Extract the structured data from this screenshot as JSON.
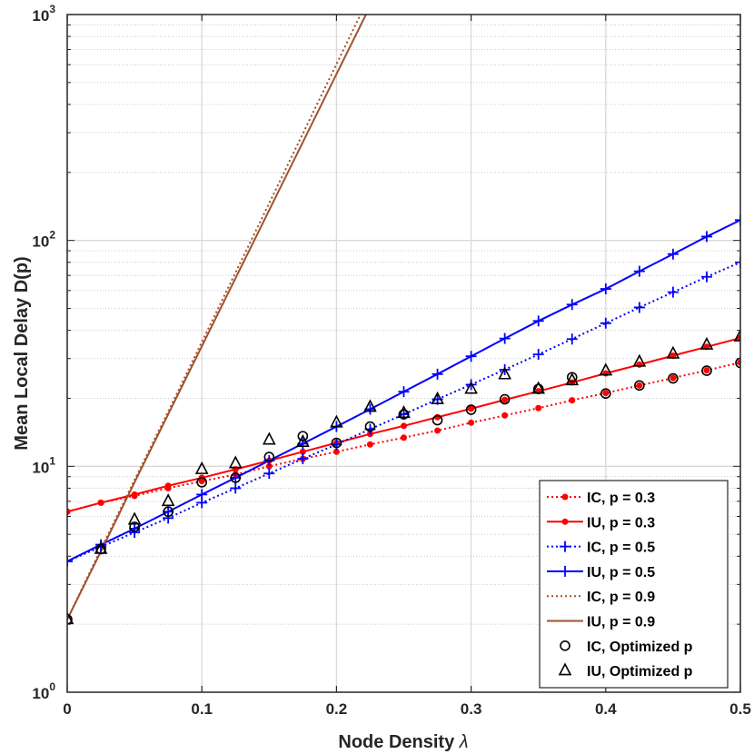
{
  "chart_data": {
    "type": "line",
    "yscale": "log",
    "xlabel": "Node Density",
    "xlabel_symbol": "λ",
    "ylabel": "Mean Local Delay D(p)",
    "xlim": [
      0,
      0.5
    ],
    "ylim": [
      1,
      1000
    ],
    "grid": true,
    "legend_position": "bottom-right",
    "x_ticks": [
      "0",
      "0.1",
      "0.2",
      "0.3",
      "0.4",
      "0.5"
    ],
    "x_tick_values": [
      0,
      0.1,
      0.2,
      0.3,
      0.4,
      0.5
    ],
    "y_ticks": [
      {
        "base": "10",
        "exp": "0",
        "value": 1
      },
      {
        "base": "10",
        "exp": "1",
        "value": 10
      },
      {
        "base": "10",
        "exp": "2",
        "value": 100
      },
      {
        "base": "10",
        "exp": "3",
        "value": 1000
      }
    ],
    "series": [
      {
        "name": "IC, p = 0.3",
        "color": "#ff0000",
        "dash": "dotted",
        "marker": "dot",
        "x": [
          0,
          0.025,
          0.05,
          0.075,
          0.1,
          0.125,
          0.15,
          0.175,
          0.2,
          0.225,
          0.25,
          0.275,
          0.3,
          0.325,
          0.35,
          0.375,
          0.4,
          0.425,
          0.45,
          0.475,
          0.5
        ],
        "y": [
          6.3,
          6.9,
          7.4,
          8.0,
          8.6,
          9.2,
          10.0,
          10.8,
          11.6,
          12.5,
          13.4,
          14.4,
          15.6,
          16.8,
          18.1,
          19.6,
          21.1,
          22.8,
          24.6,
          26.6,
          28.8
        ]
      },
      {
        "name": "IU, p = 0.3",
        "color": "#ff0000",
        "dash": "solid",
        "marker": "dot",
        "x": [
          0,
          0.025,
          0.05,
          0.075,
          0.1,
          0.125,
          0.15,
          0.175,
          0.2,
          0.225,
          0.25,
          0.275,
          0.3,
          0.325,
          0.35,
          0.375,
          0.4,
          0.425,
          0.45,
          0.475,
          0.5
        ],
        "y": [
          6.3,
          6.9,
          7.5,
          8.2,
          8.9,
          9.7,
          10.6,
          11.6,
          12.7,
          13.9,
          15.1,
          16.5,
          18.0,
          19.7,
          21.5,
          23.5,
          25.8,
          28.2,
          30.9,
          33.8,
          37.0
        ]
      },
      {
        "name": "IC, p = 0.5",
        "color": "#0000ff",
        "dash": "dotted",
        "marker": "plus",
        "x": [
          0,
          0.025,
          0.05,
          0.075,
          0.1,
          0.125,
          0.15,
          0.175,
          0.2,
          0.225,
          0.25,
          0.275,
          0.3,
          0.325,
          0.35,
          0.375,
          0.4,
          0.425,
          0.45,
          0.475,
          0.5
        ],
        "y": [
          3.8,
          4.4,
          5.1,
          5.9,
          6.9,
          8.0,
          9.3,
          10.8,
          12.5,
          14.6,
          17.0,
          19.8,
          23.0,
          26.8,
          31.3,
          36.6,
          43.0,
          50.5,
          59.0,
          69.0,
          80.0
        ]
      },
      {
        "name": "IU, p = 0.5",
        "color": "#0000ff",
        "dash": "solid",
        "marker": "plus",
        "x": [
          0,
          0.025,
          0.05,
          0.075,
          0.1,
          0.125,
          0.15,
          0.175,
          0.2,
          0.225,
          0.25,
          0.275,
          0.3,
          0.325,
          0.35,
          0.375,
          0.4,
          0.425,
          0.45,
          0.475,
          0.5
        ],
        "y": [
          3.8,
          4.5,
          5.3,
          6.3,
          7.5,
          8.9,
          10.6,
          12.6,
          15.0,
          17.9,
          21.4,
          25.6,
          30.7,
          36.8,
          44.0,
          52.0,
          61.0,
          73.0,
          87.0,
          104.0,
          123.0
        ]
      },
      {
        "name": "IC, p = 0.9",
        "color": "#a0522d",
        "dash": "dotted",
        "marker": "none",
        "x": [
          0,
          0.025,
          0.05,
          0.075,
          0.1,
          0.125,
          0.15,
          0.175,
          0.2,
          0.225
        ],
        "y": [
          2.1,
          4.3,
          8.7,
          17.5,
          35.5,
          72.0,
          146.0,
          297.0,
          603.0,
          1225.0
        ]
      },
      {
        "name": "IU, p = 0.9",
        "color": "#a0522d",
        "dash": "solid",
        "marker": "none",
        "x": [
          0,
          0.025,
          0.05,
          0.075,
          0.1,
          0.125,
          0.15,
          0.175,
          0.2,
          0.225
        ],
        "y": [
          2.1,
          4.2,
          8.5,
          17.0,
          34.0,
          68.0,
          136.0,
          272.0,
          545.0,
          1090.0
        ]
      },
      {
        "name": "IC, Optimized p",
        "color": "#000000",
        "dash": "none",
        "marker": "circle",
        "x": [
          0,
          0.025,
          0.05,
          0.075,
          0.1,
          0.125,
          0.15,
          0.175,
          0.2,
          0.225,
          0.25,
          0.275,
          0.3,
          0.325,
          0.35,
          0.375,
          0.4,
          0.425,
          0.45,
          0.475,
          0.5
        ],
        "y": [
          2.1,
          4.3,
          5.4,
          6.3,
          8.5,
          8.9,
          11.0,
          13.6,
          12.7,
          15.0,
          17.0,
          16.0,
          17.8,
          19.8,
          22.0,
          24.8,
          21.0,
          22.8,
          24.5,
          26.5,
          28.7
        ]
      },
      {
        "name": "IU, Optimized p",
        "color": "#000000",
        "dash": "none",
        "marker": "triangle",
        "x": [
          0,
          0.025,
          0.05,
          0.075,
          0.1,
          0.125,
          0.15,
          0.175,
          0.2,
          0.225,
          0.25,
          0.275,
          0.3,
          0.325,
          0.35,
          0.375,
          0.4,
          0.425,
          0.45,
          0.475,
          0.5
        ],
        "y": [
          2.1,
          4.3,
          5.8,
          7.0,
          9.7,
          10.3,
          13.1,
          12.8,
          15.6,
          18.3,
          17.2,
          19.8,
          22.0,
          25.5,
          22.0,
          24.0,
          26.5,
          29.0,
          31.5,
          34.5,
          37.5
        ]
      }
    ]
  }
}
